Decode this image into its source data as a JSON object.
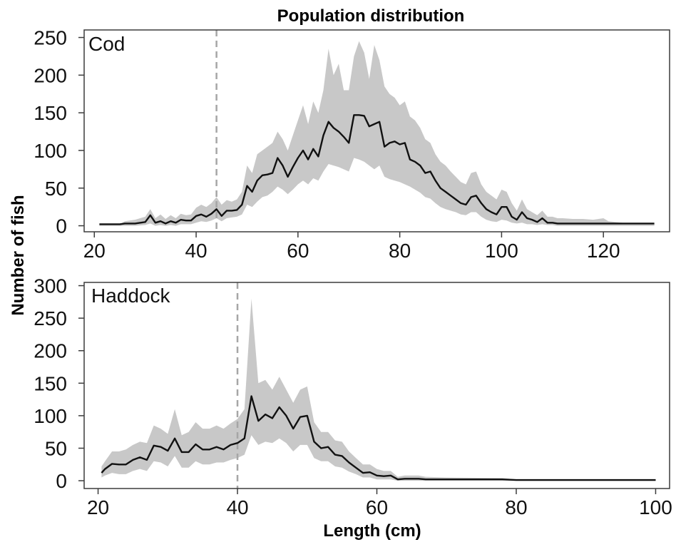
{
  "figure": {
    "title": "Population distribution",
    "xlabel": "Length (cm)",
    "ylabel": "Number of fish"
  },
  "chart_data": [
    {
      "type": "line",
      "panel": "Cod",
      "title": "Population distribution",
      "xlabel": "Length (cm)",
      "ylabel": "Number of fish",
      "xlim": [
        18,
        133
      ],
      "ylim": [
        -8,
        260
      ],
      "xticks": [
        20,
        40,
        60,
        80,
        100,
        120
      ],
      "yticks": [
        0,
        50,
        100,
        150,
        200,
        250
      ],
      "reference_line_x": 44,
      "series": [
        {
          "band": "range",
          "x": [
            21,
            25,
            26,
            28,
            30,
            31,
            32,
            33,
            34,
            35,
            36,
            37,
            38,
            39,
            40,
            41,
            42,
            43,
            44,
            45,
            46,
            47,
            48,
            49,
            50,
            51,
            52,
            53,
            54,
            55,
            56,
            57,
            58,
            59,
            60,
            61,
            62,
            63,
            64,
            65,
            66,
            67,
            68,
            69,
            70,
            71,
            72,
            73,
            74,
            75,
            76,
            77,
            78,
            79,
            80,
            81,
            82,
            83,
            84,
            85,
            86,
            87,
            88,
            89,
            90,
            91,
            92,
            93,
            94,
            95,
            96,
            97,
            98,
            99,
            100,
            101,
            102,
            103,
            104,
            105,
            106,
            107,
            108,
            109,
            110,
            111,
            112,
            114,
            116,
            118,
            120,
            121,
            125,
            130
          ],
          "mean": [
            2,
            2,
            3,
            3,
            5,
            14,
            4,
            6,
            3,
            6,
            4,
            8,
            7,
            7,
            13,
            15,
            12,
            16,
            22,
            13,
            20,
            20,
            21,
            28,
            53,
            45,
            60,
            67,
            68,
            70,
            90,
            80,
            65,
            78,
            90,
            100,
            88,
            102,
            92,
            120,
            138,
            130,
            125,
            118,
            110,
            147,
            147,
            146,
            132,
            135,
            138,
            105,
            110,
            112,
            108,
            110,
            88,
            85,
            80,
            70,
            72,
            60,
            50,
            45,
            40,
            35,
            30,
            28,
            38,
            40,
            30,
            22,
            18,
            15,
            25,
            25,
            12,
            8,
            18,
            10,
            8,
            5,
            10,
            4,
            4,
            3,
            3,
            3,
            3,
            3,
            3,
            3,
            3,
            3
          ],
          "lower": [
            0,
            0,
            0,
            0,
            1,
            3,
            0,
            1,
            0,
            1,
            0,
            2,
            2,
            2,
            4,
            6,
            5,
            7,
            10,
            6,
            10,
            11,
            12,
            15,
            28,
            25,
            32,
            38,
            40,
            45,
            52,
            48,
            42,
            48,
            55,
            60,
            55,
            63,
            60,
            72,
            82,
            80,
            78,
            75,
            72,
            90,
            88,
            85,
            80,
            75,
            80,
            65,
            62,
            60,
            58,
            55,
            52,
            48,
            44,
            38,
            36,
            30,
            25,
            22,
            20,
            18,
            15,
            14,
            18,
            18,
            12,
            8,
            6,
            5,
            8,
            7,
            4,
            3,
            4,
            2,
            2,
            1,
            2,
            1,
            1,
            0,
            0,
            0,
            0,
            0,
            0,
            0,
            0,
            0
          ],
          "upper": [
            2,
            2,
            6,
            8,
            12,
            22,
            10,
            15,
            9,
            14,
            10,
            16,
            14,
            15,
            24,
            28,
            25,
            30,
            38,
            28,
            34,
            32,
            35,
            45,
            80,
            70,
            95,
            100,
            105,
            110,
            125,
            115,
            100,
            120,
            140,
            160,
            135,
            165,
            150,
            180,
            235,
            200,
            215,
            180,
            180,
            225,
            245,
            230,
            195,
            240,
            220,
            185,
            175,
            170,
            160,
            165,
            145,
            140,
            130,
            115,
            110,
            95,
            85,
            80,
            72,
            65,
            58,
            55,
            70,
            72,
            55,
            45,
            40,
            35,
            48,
            45,
            30,
            20,
            35,
            22,
            18,
            14,
            20,
            12,
            12,
            10,
            10,
            9,
            9,
            8,
            10,
            6,
            3,
            3
          ]
        }
      ]
    },
    {
      "type": "line",
      "panel": "Haddock",
      "xlabel": "Length (cm)",
      "ylabel": "Number of fish",
      "xlim": [
        18,
        102
      ],
      "ylim": [
        -12,
        305
      ],
      "xticks": [
        20,
        40,
        60,
        80,
        100
      ],
      "yticks": [
        0,
        50,
        100,
        150,
        200,
        250,
        300
      ],
      "reference_line_x": 40,
      "series": [
        {
          "band": "range",
          "x": [
            20.5,
            21,
            22,
            23,
            24,
            25,
            26,
            27,
            28,
            29,
            30,
            31,
            32,
            33,
            34,
            35,
            36,
            37,
            38,
            39,
            40,
            41,
            42,
            43,
            44,
            45,
            46,
            47,
            48,
            49,
            50,
            51,
            52,
            53,
            54,
            55,
            56,
            57,
            58,
            59,
            60,
            61,
            62,
            63,
            64,
            65,
            66,
            67,
            70,
            78,
            80,
            90,
            100
          ],
          "mean": [
            12,
            18,
            26,
            25,
            25,
            32,
            36,
            32,
            54,
            52,
            46,
            65,
            44,
            44,
            56,
            48,
            48,
            52,
            48,
            55,
            58,
            65,
            130,
            92,
            102,
            96,
            113,
            100,
            80,
            98,
            100,
            60,
            50,
            52,
            40,
            38,
            28,
            20,
            12,
            13,
            8,
            7,
            8,
            2,
            3,
            3,
            3,
            2,
            2,
            2,
            1,
            1,
            1
          ],
          "lower": [
            5,
            8,
            12,
            10,
            10,
            15,
            18,
            15,
            30,
            28,
            22,
            38,
            20,
            20,
            30,
            25,
            25,
            28,
            28,
            32,
            35,
            40,
            70,
            55,
            60,
            58,
            65,
            58,
            45,
            55,
            55,
            35,
            30,
            30,
            22,
            20,
            14,
            10,
            5,
            5,
            2,
            2,
            2,
            0,
            0,
            0,
            0,
            0,
            0,
            0,
            0,
            0,
            0
          ],
          "upper": [
            22,
            30,
            45,
            45,
            48,
            55,
            60,
            58,
            85,
            80,
            72,
            110,
            70,
            75,
            90,
            80,
            80,
            85,
            80,
            88,
            95,
            110,
            280,
            150,
            155,
            140,
            160,
            140,
            120,
            140,
            145,
            90,
            75,
            75,
            62,
            60,
            45,
            35,
            25,
            25,
            18,
            15,
            15,
            6,
            8,
            8,
            8,
            6,
            5,
            4,
            2,
            2,
            2
          ]
        }
      ]
    }
  ]
}
